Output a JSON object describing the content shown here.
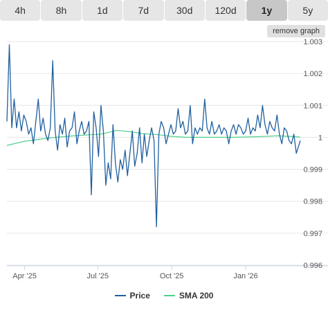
{
  "tabs": [
    {
      "label": "4h",
      "active": false
    },
    {
      "label": "8h",
      "active": false
    },
    {
      "label": "1d",
      "active": false
    },
    {
      "label": "7d",
      "active": false
    },
    {
      "label": "30d",
      "active": false
    },
    {
      "label": "120d",
      "active": false
    },
    {
      "label": "1y",
      "active": true
    },
    {
      "label": "5y",
      "active": false
    }
  ],
  "remove_graph_label": "remove graph",
  "chart_data": {
    "type": "line",
    "x_ticks": [
      "Apr '25",
      "Jul '25",
      "Oct '25",
      "Jan '26"
    ],
    "y_ticks": [
      "0.996",
      "0.997",
      "0.998",
      "0.999",
      "1",
      "1.001",
      "1.002",
      "1.003"
    ],
    "ylim": [
      0.996,
      1.003
    ],
    "x_range": [
      "2025-03-10",
      "2026-03-10"
    ],
    "grid": true,
    "legend_position": "bottom",
    "series": [
      {
        "name": "Price",
        "color": "#1f5f9f",
        "x": [
          "2025-03-10",
          "2025-03-13",
          "2025-03-16",
          "2025-03-19",
          "2025-03-22",
          "2025-03-25",
          "2025-03-28",
          "2025-03-31",
          "2025-04-03",
          "2025-04-06",
          "2025-04-09",
          "2025-04-12",
          "2025-04-15",
          "2025-04-18",
          "2025-04-21",
          "2025-04-24",
          "2025-04-27",
          "2025-04-30",
          "2025-05-03",
          "2025-05-06",
          "2025-05-09",
          "2025-05-12",
          "2025-05-15",
          "2025-05-18",
          "2025-05-21",
          "2025-05-24",
          "2025-05-27",
          "2025-05-30",
          "2025-06-02",
          "2025-06-05",
          "2025-06-08",
          "2025-06-11",
          "2025-06-14",
          "2025-06-17",
          "2025-06-20",
          "2025-06-23",
          "2025-06-26",
          "2025-06-29",
          "2025-07-02",
          "2025-07-05",
          "2025-07-08",
          "2025-07-11",
          "2025-07-14",
          "2025-07-17",
          "2025-07-20",
          "2025-07-23",
          "2025-07-26",
          "2025-07-29",
          "2025-08-01",
          "2025-08-04",
          "2025-08-07",
          "2025-08-10",
          "2025-08-13",
          "2025-08-16",
          "2025-08-19",
          "2025-08-22",
          "2025-08-25",
          "2025-08-28",
          "2025-08-31",
          "2025-09-03",
          "2025-09-06",
          "2025-09-09",
          "2025-09-12",
          "2025-09-15",
          "2025-09-18",
          "2025-09-21",
          "2025-09-24",
          "2025-09-27",
          "2025-09-30",
          "2025-10-03",
          "2025-10-06",
          "2025-10-09",
          "2025-10-12",
          "2025-10-15",
          "2025-10-18",
          "2025-10-21",
          "2025-10-24",
          "2025-10-27",
          "2025-10-30",
          "2025-11-02",
          "2025-11-05",
          "2025-11-08",
          "2025-11-11",
          "2025-11-14",
          "2025-11-17",
          "2025-11-20",
          "2025-11-23",
          "2025-11-26",
          "2025-11-29",
          "2025-12-02",
          "2025-12-05",
          "2025-12-08",
          "2025-12-11",
          "2025-12-14",
          "2025-12-17",
          "2025-12-20",
          "2025-12-23",
          "2025-12-26",
          "2025-12-29",
          "2026-01-01",
          "2026-01-04",
          "2026-01-07",
          "2026-01-10",
          "2026-01-13",
          "2026-01-16",
          "2026-01-19",
          "2026-01-22",
          "2026-01-25",
          "2026-01-28",
          "2026-01-31",
          "2026-02-03",
          "2026-02-06",
          "2026-02-09",
          "2026-02-12",
          "2026-02-15",
          "2026-02-18",
          "2026-02-21",
          "2026-02-24",
          "2026-02-27",
          "2026-03-02",
          "2026-03-05",
          "2026-03-10"
        ],
        "y": [
          1.0005,
          1.0029,
          1.0003,
          1.0012,
          1.0003,
          1.0008,
          1.0002,
          1.0007,
          1.0005,
          1.0001,
          1.0003,
          0.9998,
          1.0005,
          1.0012,
          1.0002,
          1.0006,
          1.0001,
          0.9999,
          1.0003,
          1.0024,
          1.0002,
          0.9996,
          1.0004,
          1.0001,
          1.0006,
          0.9997,
          1.0002,
          1.0003,
          1.0008,
          0.9998,
          1.0002,
          1.0005,
          1.0001,
          1.0002,
          1.0005,
          0.9982,
          1.0008,
          1.0003,
          0.9994,
          1.001,
          1.0002,
          0.9985,
          0.9992,
          0.9987,
          1.0004,
          0.9992,
          0.9986,
          0.9993,
          0.999,
          0.9996,
          0.9988,
          0.9995,
          1.0002,
          0.9991,
          0.9995,
          1.0003,
          0.9992,
          1.0001,
          0.9994,
          0.9999,
          1.0003,
          0.9999,
          0.9972,
          1.0001,
          1.0005,
          1.0003,
          0.9998,
          1.0001,
          1.0004,
          1.0001,
          1.0002,
          1.0009,
          1.0003,
          1.0005,
          1.0001,
          1.0002,
          1.001,
          0.9998,
          1.0003,
          1.0001,
          1.0003,
          1.0002,
          1.0012,
          1.0003,
          1.0001,
          1.0005,
          1.0001,
          1.0002,
          1.0004,
          1.0001,
          1.0003,
          1.0002,
          0.9998,
          1.0002,
          1.0004,
          1.0001,
          1.0004,
          1.0003,
          1.0001,
          1.0002,
          1.0006,
          1.0001,
          1.0003,
          1.0002,
          1.0007,
          1.0003,
          1.001,
          1.0004,
          1.0001,
          1.0005,
          1.0003,
          1.0002,
          1.0007,
          1.0001,
          0.9998,
          1.0003,
          1.0002,
          0.9999,
          0.9998,
          1.0001,
          0.9995,
          0.9999
        ]
      },
      {
        "name": "SMA 200",
        "color": "#4fd08a",
        "x": [
          "2025-03-10",
          "2025-04-01",
          "2025-05-01",
          "2025-06-01",
          "2025-06-20",
          "2025-07-05",
          "2025-07-25",
          "2025-08-10",
          "2025-08-25",
          "2025-09-15",
          "2025-10-01",
          "2025-10-20",
          "2025-11-15",
          "2025-12-15",
          "2026-01-15",
          "2026-02-10",
          "2026-02-25",
          "2026-03-10"
        ],
        "y": [
          0.99975,
          0.99988,
          0.99998,
          1.00005,
          1.00008,
          1.0001,
          1.00022,
          1.00018,
          1.00012,
          1.00008,
          1.00003,
          1.0,
          1.0,
          1.0,
          1.00002,
          1.00005,
          1.00003,
          1.00001
        ]
      }
    ]
  }
}
